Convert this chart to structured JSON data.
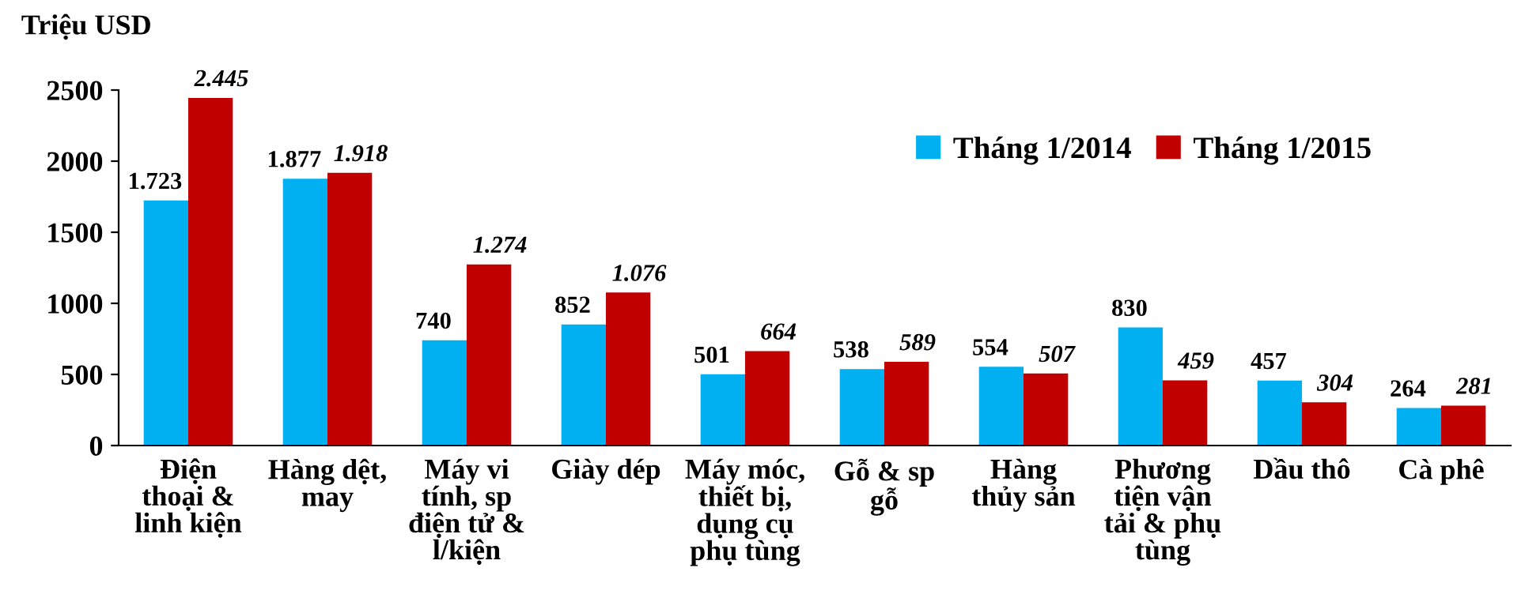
{
  "chart_data": {
    "type": "bar",
    "ylabel": "Triệu USD",
    "categories": [
      "Điện\nthoại &\nlinh kiện",
      "Hàng dệt,\nmay",
      "Máy vi\ntính, sp\nđiện tử &\nl/kiện",
      "Giày dép",
      "Máy móc,\nthiết bị,\ndụng cụ\nphụ tùng",
      "Gỗ & sp\ngỗ",
      "Hàng\nthủy sản",
      "Phương\ntiện vận\ntải & phụ\ntùng",
      "Dầu thô",
      "Cà phê"
    ],
    "series": [
      {
        "name": "Tháng 1/2014",
        "color": "#00b0f0",
        "values": [
          1723,
          1877,
          740,
          852,
          501,
          538,
          554,
          830,
          457,
          264
        ],
        "value_labels": [
          "1.723",
          "1.877",
          "740",
          "852",
          "501",
          "538",
          "554",
          "830",
          "457",
          "264"
        ]
      },
      {
        "name": "Tháng 1/2015",
        "color": "#c00000",
        "values": [
          2445,
          1918,
          1274,
          1076,
          664,
          589,
          507,
          459,
          304,
          281
        ],
        "value_labels": [
          "2.445",
          "1.918",
          "1.274",
          "1.076",
          "664",
          "589",
          "507",
          "459",
          "304",
          "281"
        ]
      }
    ],
    "ylim": [
      0,
      2500
    ],
    "yticks": [
      0,
      500,
      1000,
      1500,
      2000,
      2500
    ],
    "grid": false,
    "legend": "top right"
  }
}
